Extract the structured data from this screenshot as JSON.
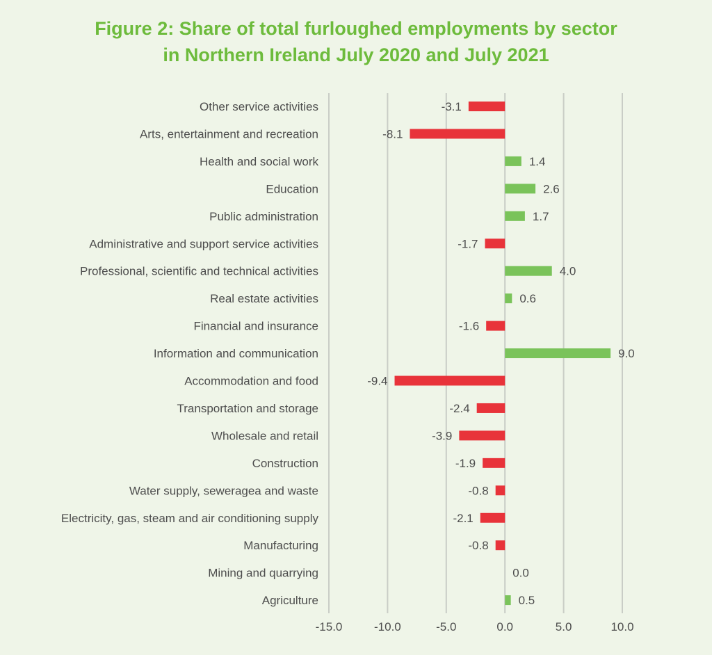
{
  "title_lines": [
    "Figure 2: Share of total furloughed employments by sector",
    "in Northern Ireland July 2020 and July 2021"
  ],
  "colors": {
    "background": "#eff5e8",
    "title": "#6dbb3c",
    "positive": "#7ac35a",
    "negative": "#e8333a",
    "gridline": "#c9cdc6",
    "text": "#4d4d4d"
  },
  "chart_data": {
    "type": "bar",
    "orientation": "horizontal",
    "title": "Figure 2: Share of total furloughed employments by sector in Northern Ireland July 2020 and July 2021",
    "categories": [
      "Other service activities",
      "Arts, entertainment and recreation",
      "Health and social work",
      "Education",
      "Public administration",
      "Administrative and support service activities",
      "Professional, scientific and technical activities",
      "Real estate activities",
      "Financial and insurance ",
      "Information and communication",
      "Accommodation and food",
      "Transportation and storage",
      "Wholesale and retail ",
      "Construction",
      "Water supply, seweragea and waste ",
      "Electricity, gas, steam and air conditioning supply",
      "Manufacturing",
      "Mining and quarrying",
      "Agriculture"
    ],
    "values": [
      -3.1,
      -8.1,
      1.4,
      2.6,
      1.7,
      -1.7,
      4.0,
      0.6,
      -1.6,
      9.0,
      -9.4,
      -2.4,
      -3.9,
      -1.9,
      -0.8,
      -2.1,
      -0.8,
      0.0,
      0.5
    ],
    "xlim": [
      -15,
      10
    ],
    "xticks": [
      "-15.0",
      "-10.0",
      "-5.0",
      "0.0",
      "5.0",
      "10.0"
    ],
    "xtick_values": [
      -15,
      -10,
      -5,
      0,
      5,
      10
    ],
    "value_format_decimals": 1,
    "grid": "vertical",
    "legend": "none"
  }
}
